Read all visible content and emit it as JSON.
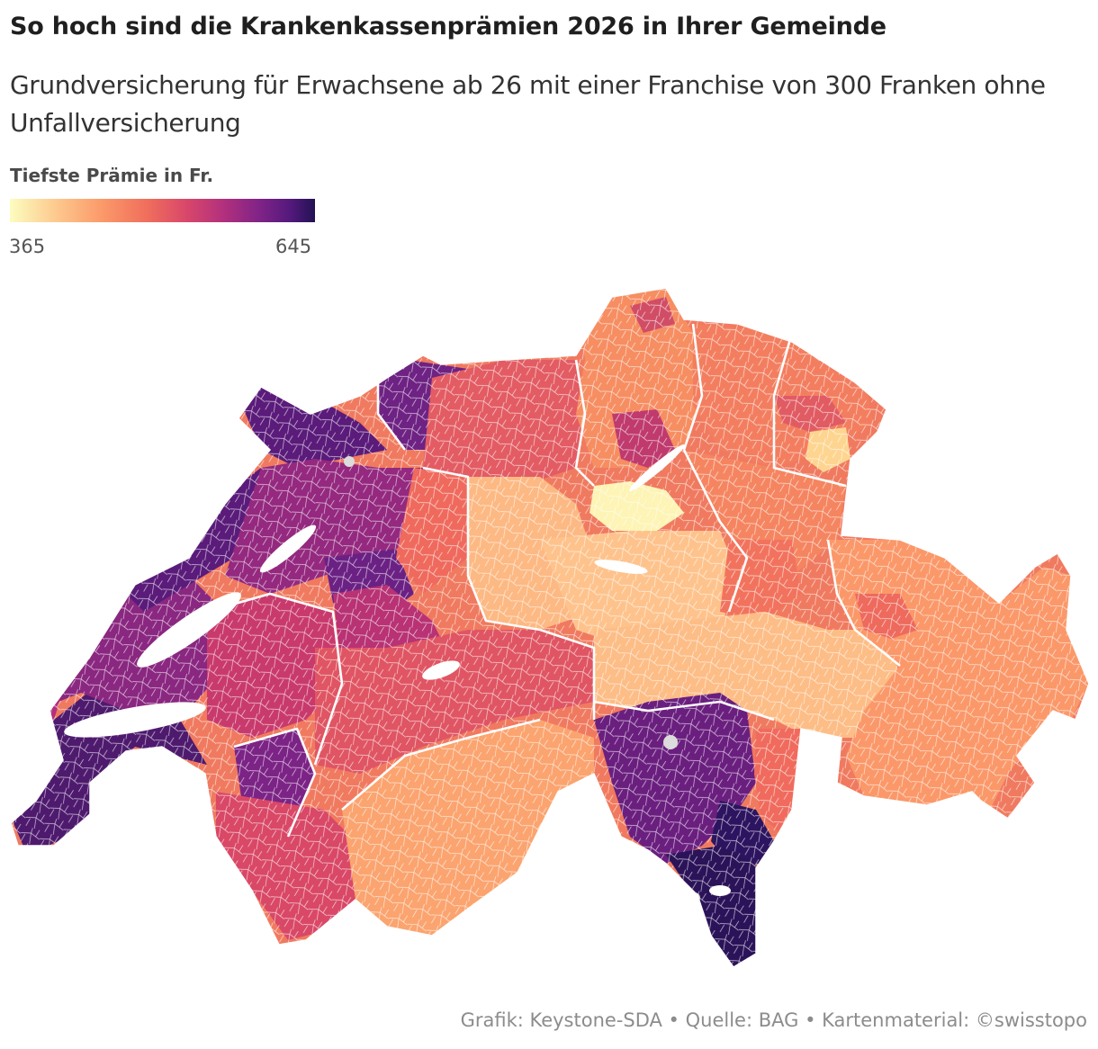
{
  "title": "So hoch sind die Krankenkassenprämien 2026 in Ihrer Gemeinde",
  "subtitle": "Grundversicherung für Erwachsene ab 26 mit einer Franchise von 300 Franken ohne Unfallversicherung",
  "legend": {
    "title": "Tiefste Prämie in Fr.",
    "min": "365",
    "max": "645",
    "colors": [
      "#fcfdbf",
      "#fdc68c",
      "#fb9a6a",
      "#f06e5c",
      "#d8476a",
      "#b2307d",
      "#7f2387",
      "#53197c",
      "#221253"
    ]
  },
  "source": "Grafik: Keystone-SDA • Quelle: BAG • Kartenmaterial: ©swisstopo"
}
